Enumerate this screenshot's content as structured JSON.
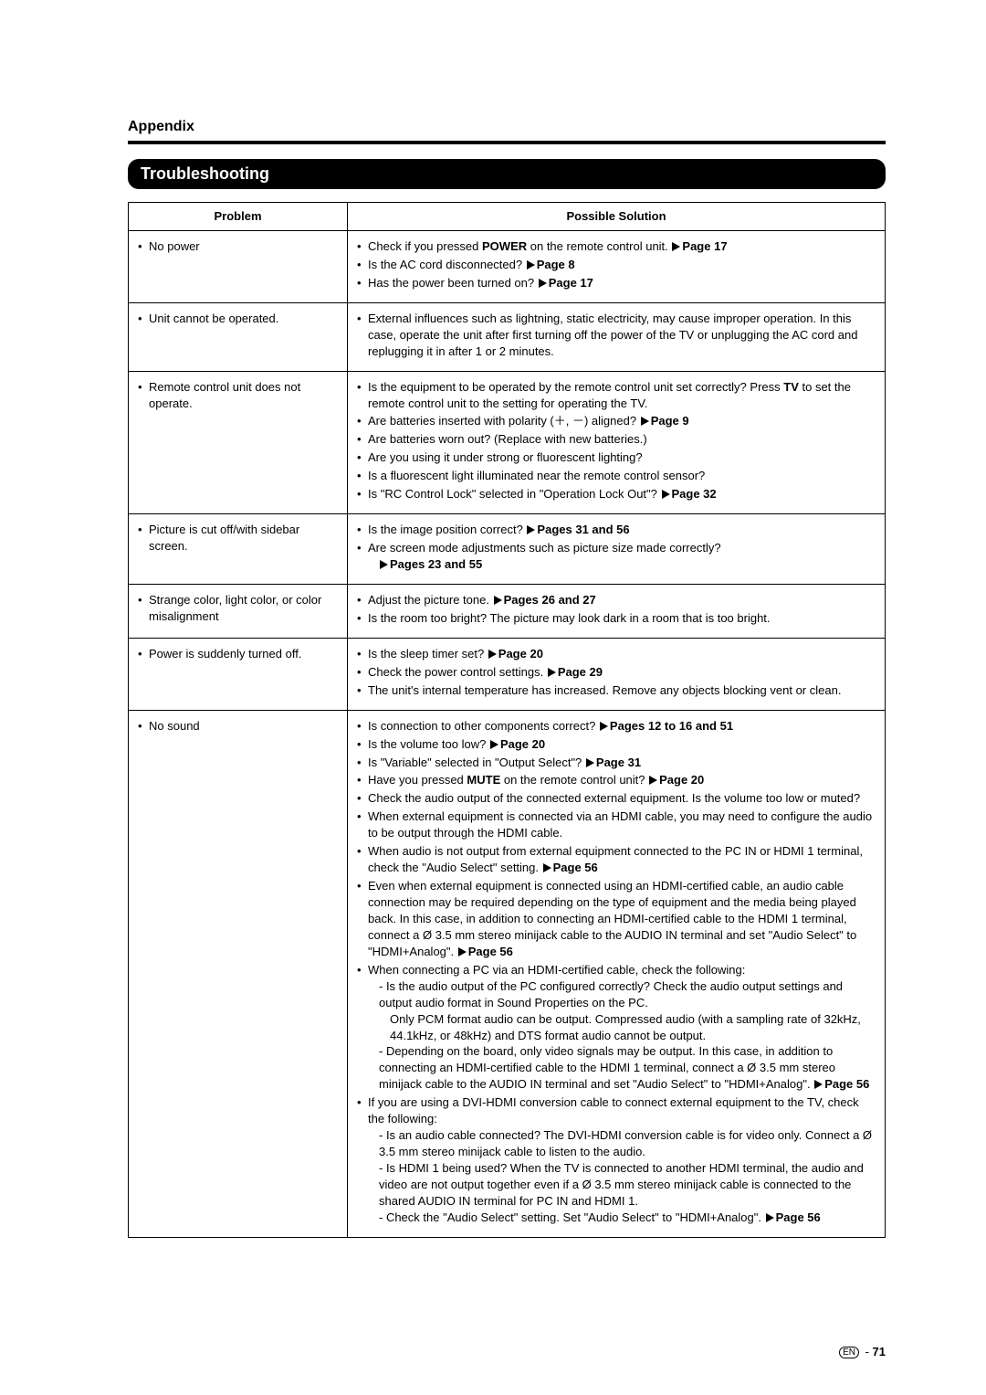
{
  "appendix_label": "Appendix",
  "section_title": "Troubleshooting",
  "columns": {
    "problem": "Problem",
    "solution": "Possible Solution"
  },
  "page_ref_prefix": "Page ",
  "pages_ref_prefix": "Pages ",
  "rows": [
    {
      "problem": "No power",
      "solutions": [
        {
          "pre": "Check if you pressed ",
          "bold1": "POWER",
          "post1": " on the remote control unit. ",
          "page": "17"
        },
        {
          "pre": "Is the AC cord disconnected? ",
          "page": "8"
        },
        {
          "pre": "Has the power been turned on? ",
          "page": "17"
        }
      ]
    },
    {
      "problem": "Unit cannot be operated.",
      "solutions": [
        {
          "pre": "External influences such as lightning, static electricity, may cause improper operation. In this case, operate the unit after first turning off the power of the TV or unplugging the AC cord and replugging it in after 1 or 2 minutes."
        }
      ]
    },
    {
      "problem": "Remote control unit does not operate.",
      "solutions": [
        {
          "pre": "Is the equipment to be operated by the remote control unit set correctly? Press ",
          "bold1": "TV",
          "post1": " to set the remote control unit to the setting for operating the TV."
        },
        {
          "pre": "Are batteries inserted with polarity (＋, －) aligned? ",
          "page": "9"
        },
        {
          "pre": "Are batteries worn out? (Replace with new batteries.)"
        },
        {
          "pre": "Are you using it under strong or fluorescent lighting?"
        },
        {
          "pre": "Is a fluorescent light illuminated near the remote control sensor?"
        },
        {
          "pre": "Is \"RC Control Lock\" selected in \"Operation Lock Out\"? ",
          "page": "32"
        }
      ]
    },
    {
      "problem": "Picture is cut off/with sidebar screen.",
      "solutions": [
        {
          "pre": "Is the image position correct? ",
          "pages": "31 and 56"
        },
        {
          "pre": "Are screen mode adjustments such as picture size made correctly?",
          "page_newline": "23 and 55",
          "pages_prefix": true
        }
      ]
    },
    {
      "problem": "Strange color, light color, or color misalignment",
      "solutions": [
        {
          "pre": "Adjust the picture tone. ",
          "pages": "26 and 27"
        },
        {
          "pre": "Is the room too bright? The picture may look dark in a room that is too bright."
        }
      ]
    },
    {
      "problem": "Power is suddenly turned off.",
      "solutions": [
        {
          "pre": "Is the sleep timer set? ",
          "page": "20"
        },
        {
          "pre": "Check the power control settings. ",
          "page": "29"
        },
        {
          "pre": "The unit's internal temperature has increased. Remove any objects blocking vent or clean."
        }
      ]
    },
    {
      "problem": "No sound",
      "solutions": [
        {
          "pre": "Is connection to other components correct? ",
          "pages": "12 to 16 and 51"
        },
        {
          "pre": "Is the volume too low? ",
          "page": "20"
        },
        {
          "pre": "Is \"Variable\" selected in \"Output Select\"? ",
          "page": "31"
        },
        {
          "pre": "Have you pressed ",
          "bold1": "MUTE",
          "post1": " on the remote control unit? ",
          "page": "20"
        },
        {
          "pre": "Check the audio output of the connected external equipment. Is the volume too low or muted?"
        },
        {
          "pre": "When external equipment is connected via an HDMI cable, you may need to configure the audio to be output through the HDMI cable."
        },
        {
          "pre": "When audio is not output from external equipment connected to the PC IN or HDMI 1 terminal, check the \"Audio Select\" setting. ",
          "page": "56"
        },
        {
          "pre": "Even when external equipment is connected using an HDMI-certified cable, an audio cable connection may be required depending on the type of equipment and the media being played back. In this case, in addition to connecting an HDMI-certified cable to the HDMI 1 terminal, connect a Ø 3.5 mm stereo minijack cable to the AUDIO IN terminal and set \"Audio Select\" to \"HDMI+Analog\". ",
          "page": "56"
        },
        {
          "pre": "When connecting a PC via an HDMI-certified cable, check the following:",
          "subs": [
            {
              "dash": "- Is the audio output of the PC configured correctly? Check the audio output settings and output audio format in Sound Properties on the PC.",
              "sub2": "Only PCM format audio can be output. Compressed audio (with a sampling rate of 32kHz, 44.1kHz, or 48kHz) and DTS format audio cannot be output."
            },
            {
              "dash": "- Depending on the board, only video signals may be output. In this case, in addition to connecting an HDMI-certified cable to the HDMI 1 terminal, connect a Ø 3.5 mm stereo minijack cable to the AUDIO IN terminal and set \"Audio Select\" to \"HDMI+Analog\". ",
              "page": "56"
            }
          ]
        },
        {
          "pre": "If you are using a DVI-HDMI conversion cable to connect external equipment to the TV, check the following:",
          "subs": [
            {
              "dash": "- Is an audio cable connected? The DVI-HDMI conversion cable is for video only. Connect a Ø 3.5 mm stereo minijack cable to listen to the audio."
            },
            {
              "dash": "- Is HDMI 1 being used? When the TV is connected to another HDMI terminal, the audio and video are not output together even if a Ø 3.5 mm stereo minijack cable is connected to the shared AUDIO IN terminal for PC IN and HDMI 1."
            },
            {
              "dash": "- Check the \"Audio Select\" setting. Set \"Audio Select\" to \"HDMI+Analog\". ",
              "page": "56"
            }
          ]
        }
      ]
    }
  ],
  "footer": {
    "lang": "EN",
    "sep": " - ",
    "num": "71"
  }
}
